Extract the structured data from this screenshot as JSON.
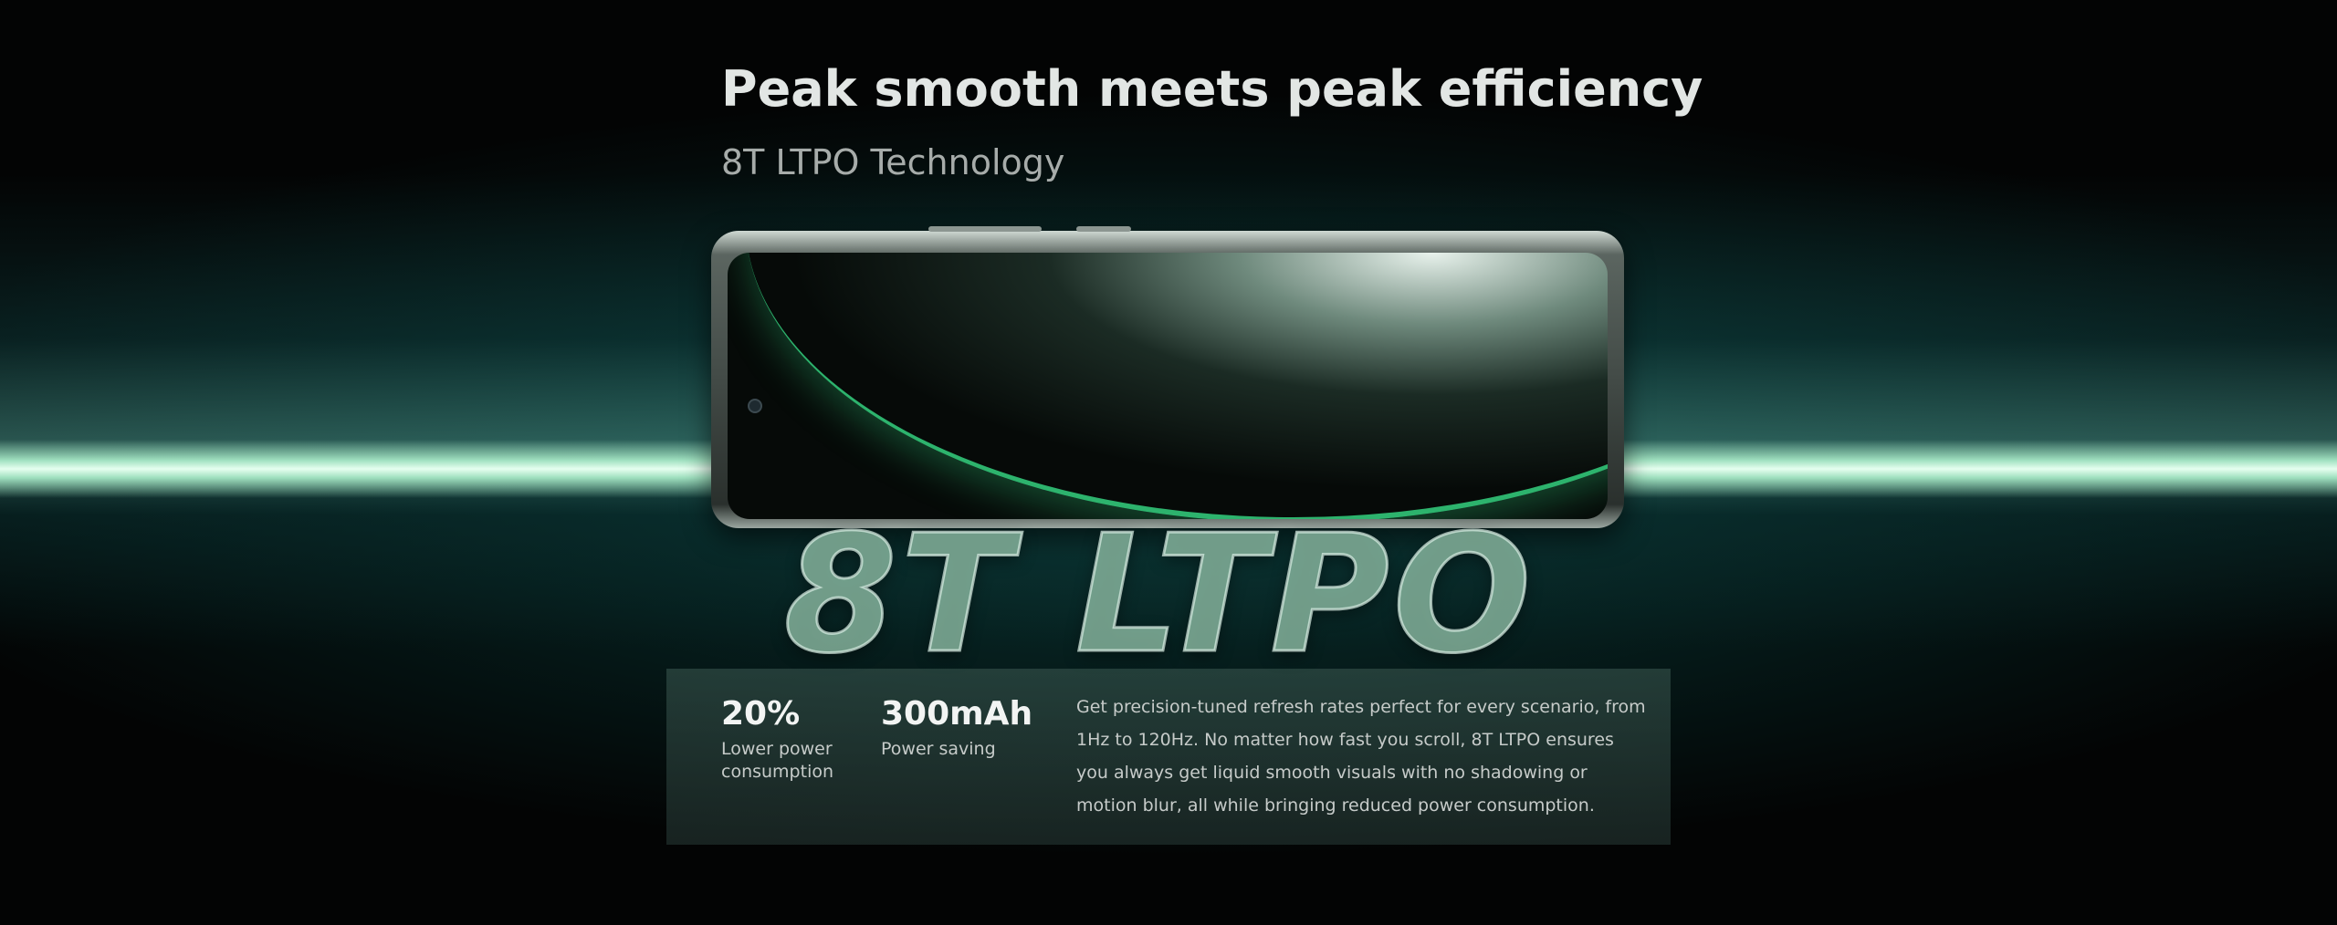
{
  "header": {
    "title": "Peak smooth meets peak efficiency",
    "subtitle": "8T LTPO Technology"
  },
  "hero": {
    "graphic_text": "8T LTPO"
  },
  "stats": [
    {
      "value": "20%",
      "label": "Lower power consumption"
    },
    {
      "value": "300mAh",
      "label": "Power saving"
    }
  ],
  "description": "Get precision-tuned refresh rates perfect for every scenario, from 1Hz to 120Hz. No matter how fast you scroll, 8T LTPO ensures you always get liquid smooth visuals with no shadowing or motion blur, all while bringing reduced power consumption."
}
